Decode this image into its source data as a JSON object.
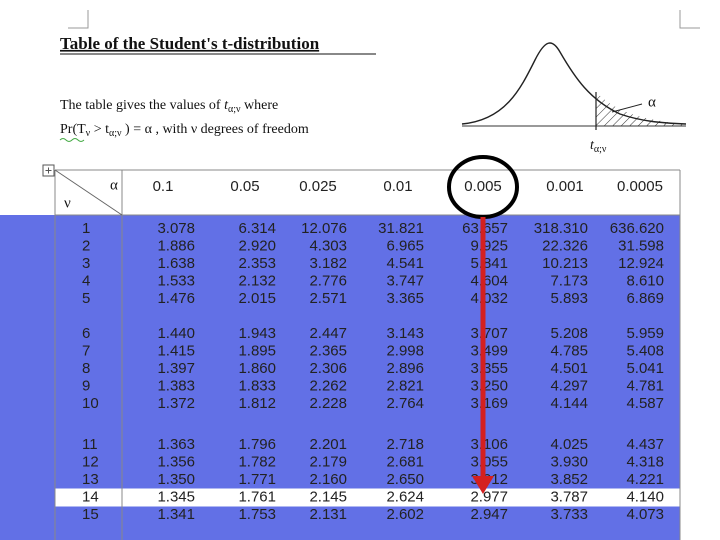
{
  "title": "Table of the Student's t-distribution",
  "intro": {
    "line1": [
      "The table gives the values of ",
      "t",
      "α;ν",
      "  where"
    ],
    "line2": [
      "Pr(T",
      "ν",
      " > t",
      "α;ν",
      " ) = α , with  ν  degrees of freedom"
    ]
  },
  "figure": {
    "alpha_label": "α",
    "t_label": "t",
    "t_sub": "α;ν"
  },
  "table": {
    "corner_alpha": "α",
    "corner_nu": "ν",
    "alphas": [
      "0.1",
      "0.05",
      "0.025",
      "0.01",
      "0.005",
      "0.001",
      "0.0005"
    ],
    "rows": [
      {
        "nu": "1",
        "values": [
          "3.078",
          "6.314",
          "12.076",
          "31.821",
          "63.657",
          "318.310",
          "636.620"
        ]
      },
      {
        "nu": "2",
        "values": [
          "1.886",
          "2.920",
          "4.303",
          "6.965",
          "9.925",
          "22.326",
          "31.598"
        ]
      },
      {
        "nu": "3",
        "values": [
          "1.638",
          "2.353",
          "3.182",
          "4.541",
          "5.841",
          "10.213",
          "12.924"
        ]
      },
      {
        "nu": "4",
        "values": [
          "1.533",
          "2.132",
          "2.776",
          "3.747",
          "4.604",
          "7.173",
          "8.610"
        ]
      },
      {
        "nu": "5",
        "values": [
          "1.476",
          "2.015",
          "2.571",
          "3.365",
          "4.032",
          "5.893",
          "6.869"
        ]
      },
      {
        "nu": "6",
        "values": [
          "1.440",
          "1.943",
          "2.447",
          "3.143",
          "3.707",
          "5.208",
          "5.959"
        ]
      },
      {
        "nu": "7",
        "values": [
          "1.415",
          "1.895",
          "2.365",
          "2.998",
          "3.499",
          "4.785",
          "5.408"
        ]
      },
      {
        "nu": "8",
        "values": [
          "1.397",
          "1.860",
          "2.306",
          "2.896",
          "3.355",
          "4.501",
          "5.041"
        ]
      },
      {
        "nu": "9",
        "values": [
          "1.383",
          "1.833",
          "2.262",
          "2.821",
          "3.250",
          "4.297",
          "4.781"
        ]
      },
      {
        "nu": "10",
        "values": [
          "1.372",
          "1.812",
          "2.228",
          "2.764",
          "3.169",
          "4.144",
          "4.587"
        ]
      },
      {
        "nu": "11",
        "values": [
          "1.363",
          "1.796",
          "2.201",
          "2.718",
          "3.106",
          "4.025",
          "4.437"
        ]
      },
      {
        "nu": "12",
        "values": [
          "1.356",
          "1.782",
          "2.179",
          "2.681",
          "3.055",
          "3.930",
          "4.318"
        ]
      },
      {
        "nu": "13",
        "values": [
          "1.350",
          "1.771",
          "2.160",
          "2.650",
          "3.012",
          "3.852",
          "4.221"
        ]
      },
      {
        "nu": "14",
        "values": [
          "1.345",
          "1.761",
          "2.145",
          "2.624",
          "2.977",
          "3.787",
          "4.140"
        ]
      },
      {
        "nu": "15",
        "values": [
          "1.341",
          "1.753",
          "2.131",
          "2.602",
          "2.947",
          "3.733",
          "4.073"
        ]
      }
    ]
  }
}
